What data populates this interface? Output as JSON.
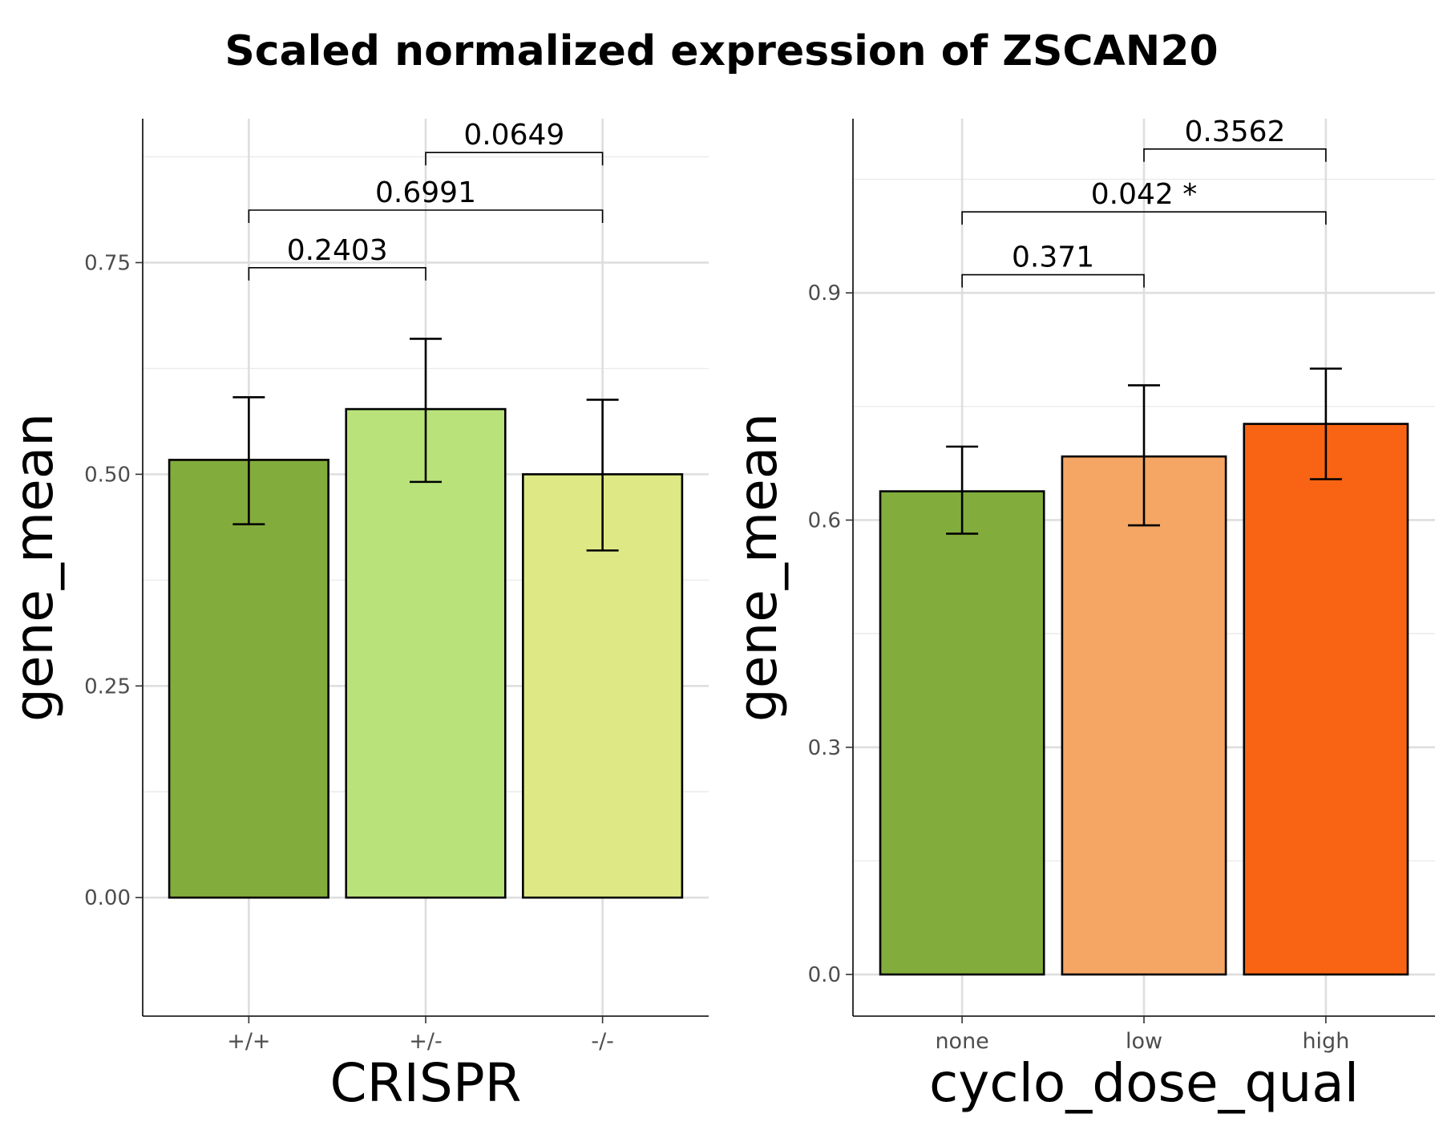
{
  "title": "Scaled normalized expression of ZSCAN20",
  "chart_data": [
    {
      "type": "bar",
      "xlabel": "CRISPR",
      "ylabel": "gene_mean",
      "categories": [
        "+/+",
        "+/-",
        "-/-"
      ],
      "values": [
        0.517,
        0.577,
        0.5
      ],
      "error_low": [
        0.441,
        0.491,
        0.41
      ],
      "error_high": [
        0.591,
        0.66,
        0.588
      ],
      "colors": [
        "#82AD3C",
        "#B9E37A",
        "#DEE985"
      ],
      "ylim": [
        -0.14,
        0.92
      ],
      "yticks": [
        0.0,
        0.25,
        0.5,
        0.75
      ],
      "ytick_labels": [
        "0.00",
        "0.25",
        "0.50",
        "0.75"
      ],
      "comparisons": [
        {
          "from": 0,
          "to": 1,
          "label": "0.2403",
          "y": 0.744
        },
        {
          "from": 0,
          "to": 2,
          "label": "0.6991",
          "y": 0.812
        },
        {
          "from": 1,
          "to": 2,
          "label": "0.0649",
          "y": 0.88
        }
      ],
      "grid": true
    },
    {
      "type": "bar",
      "xlabel": "cyclo_dose_qual",
      "ylabel": "gene_mean",
      "categories": [
        "none",
        "low",
        "high"
      ],
      "values": [
        0.638,
        0.684,
        0.727
      ],
      "error_low": [
        0.582,
        0.593,
        0.654
      ],
      "error_high": [
        0.697,
        0.778,
        0.8
      ],
      "colors": [
        "#82AD3C",
        "#F5A664",
        "#F86413"
      ],
      "ylim": [
        -0.055,
        1.13
      ],
      "yticks": [
        0.0,
        0.3,
        0.6,
        0.9
      ],
      "ytick_labels": [
        "0.0",
        "0.3",
        "0.6",
        "0.9"
      ],
      "comparisons": [
        {
          "from": 0,
          "to": 1,
          "label": "0.371",
          "y": 0.924
        },
        {
          "from": 0,
          "to": 2,
          "label": "0.042 *",
          "y": 1.007
        },
        {
          "from": 1,
          "to": 2,
          "label": "0.3562",
          "y": 1.09
        }
      ],
      "grid": true
    }
  ]
}
